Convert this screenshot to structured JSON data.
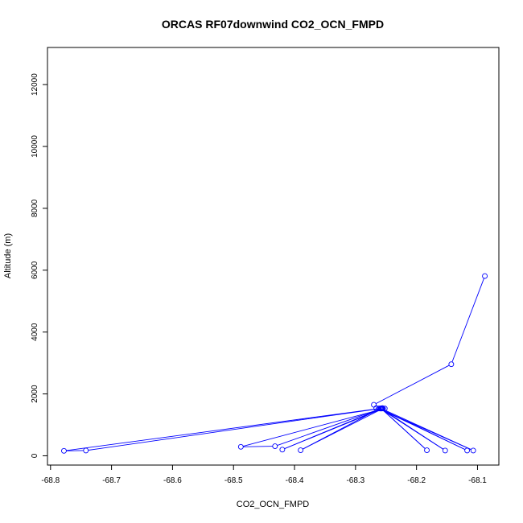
{
  "chart_data": {
    "type": "line",
    "title": "ORCAS RF07downwind CO2_OCN_FMPD",
    "xlabel": "CO2_OCN_FMPD",
    "ylabel": "Altitude (m)",
    "xlim": [
      -68.805,
      -68.065
    ],
    "ylim": [
      -300,
      13200
    ],
    "xticks": [
      -68.8,
      -68.7,
      -68.6,
      -68.5,
      -68.4,
      -68.3,
      -68.2,
      -68.1
    ],
    "xtick_labels": [
      "-68.8",
      "-68.7",
      "-68.6",
      "-68.5",
      "-68.4",
      "-68.3",
      "-68.2",
      "-68.1"
    ],
    "yticks": [
      0,
      2000,
      4000,
      6000,
      8000,
      10000,
      12000
    ],
    "ytick_labels": [
      "0",
      "2000",
      "4000",
      "6000",
      "8000",
      "10000",
      "12000"
    ],
    "grid": false,
    "color": "#0000ff",
    "series": [
      {
        "x": [
          -68.088,
          -68.143,
          -68.27,
          -68.266,
          -68.257,
          -68.252,
          -68.488,
          -68.432,
          -68.256,
          -68.42,
          -68.255,
          -68.39,
          -68.26,
          -68.778,
          -68.742,
          -68.258,
          -68.183,
          -68.258,
          -68.153,
          -68.26,
          -68.117,
          -68.262,
          -68.107,
          -68.258
        ],
        "y": [
          5810,
          2960,
          1650,
          1540,
          1530,
          1530,
          290,
          310,
          1540,
          200,
          1530,
          180,
          1530,
          160,
          170,
          1530,
          180,
          1530,
          170,
          1530,
          170,
          1530,
          170,
          1530
        ]
      }
    ]
  }
}
